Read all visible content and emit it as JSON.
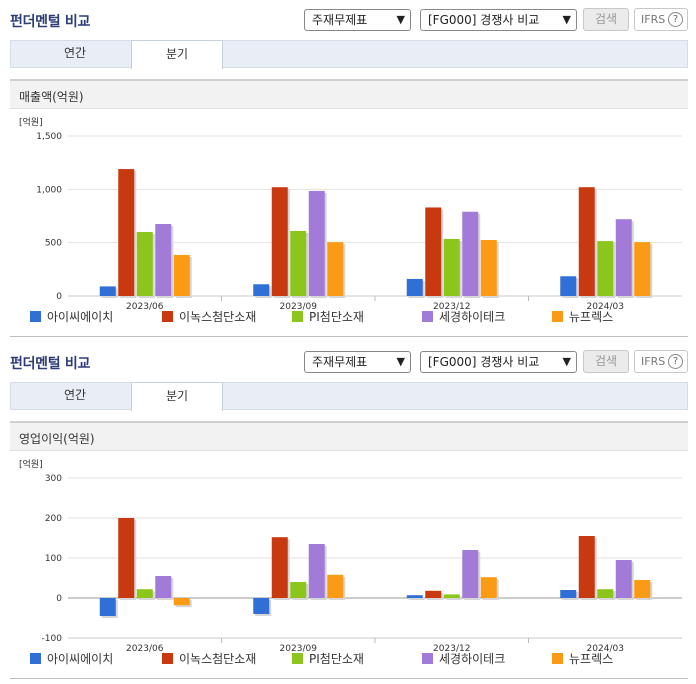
{
  "header": {
    "title": "펀더멘털 비교",
    "select_type": "주재무제표",
    "select_group": "[FG000] 경쟁사 비교",
    "search_label": "검색",
    "ifrs_label": "IFRS",
    "help_glyph": "?"
  },
  "tabs": {
    "annual": "연간",
    "quarter": "분기"
  },
  "colors": [
    "#2f6fd6",
    "#c9390f",
    "#8cc61d",
    "#a27bd8",
    "#fa9a15"
  ],
  "chart_data": [
    {
      "type": "bar",
      "title": "매출액(억원)",
      "ylabel": "[억원]",
      "ylim": [
        0,
        1500
      ],
      "yticks": [
        0,
        500,
        1000,
        1500
      ],
      "ytick_labels": [
        "0",
        "500",
        "1,000",
        "1,500"
      ],
      "categories": [
        "2023/06",
        "2023/09",
        "2023/12",
        "2024/03"
      ],
      "legend_position": "bottom",
      "series": [
        {
          "name": "아이씨에이치",
          "values": [
            90,
            110,
            160,
            185
          ]
        },
        {
          "name": "이녹스첨단소재",
          "values": [
            1190,
            1020,
            830,
            1020
          ]
        },
        {
          "name": "PI첨단소재",
          "values": [
            600,
            610,
            535,
            515
          ]
        },
        {
          "name": "세경하이테크",
          "values": [
            675,
            985,
            790,
            720
          ]
        },
        {
          "name": "뉴프렉스",
          "values": [
            385,
            505,
            525,
            505
          ]
        }
      ]
    },
    {
      "type": "bar",
      "title": "영업이익(억원)",
      "ylabel": "[억원]",
      "ylim": [
        -100,
        300
      ],
      "yticks": [
        -100,
        0,
        100,
        200,
        300
      ],
      "ytick_labels": [
        "-100",
        "0",
        "100",
        "200",
        "300"
      ],
      "categories": [
        "2023/06",
        "2023/09",
        "2023/12",
        "2024/03"
      ],
      "legend_position": "bottom",
      "series": [
        {
          "name": "아이씨에이치",
          "values": [
            -45,
            -40,
            7,
            20
          ]
        },
        {
          "name": "이녹스첨단소재",
          "values": [
            200,
            152,
            18,
            155
          ]
        },
        {
          "name": "PI첨단소재",
          "values": [
            22,
            40,
            9,
            22
          ]
        },
        {
          "name": "세경하이테크",
          "values": [
            55,
            135,
            120,
            95
          ]
        },
        {
          "name": "뉴프렉스",
          "values": [
            -18,
            58,
            52,
            45
          ]
        }
      ]
    }
  ]
}
